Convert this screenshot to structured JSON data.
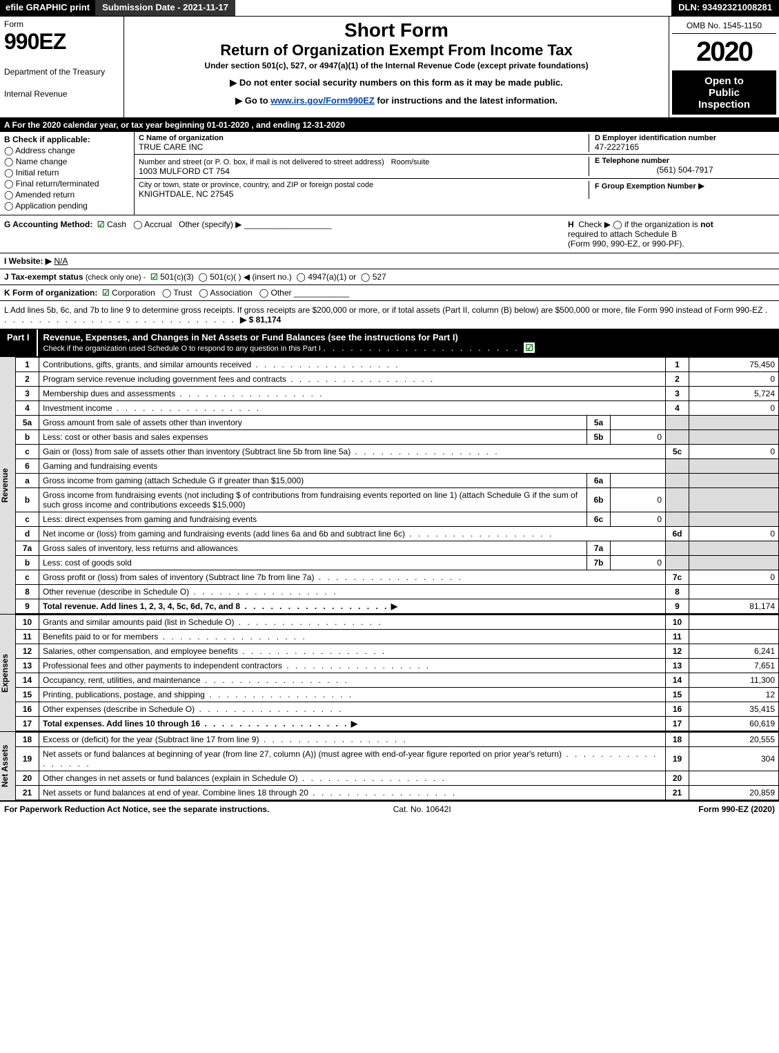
{
  "topbar": {
    "efile": "efile GRAPHIC print",
    "submission": "Submission Date - 2021-11-17",
    "dln": "DLN: 93492321008281"
  },
  "header": {
    "form_label": "Form",
    "form_num": "990EZ",
    "dept1": "Department of the Treasury",
    "dept2": "Internal Revenue",
    "short_form": "Short Form",
    "title": "Return of Organization Exempt From Income Tax",
    "under": "Under section 501(c), 527, or 4947(a)(1) of the Internal Revenue Code (except private foundations)",
    "instr1": "▶ Do not enter social security numbers on this form as it may be made public.",
    "instr2_pre": "▶ Go to ",
    "instr2_link": "www.irs.gov/Form990EZ",
    "instr2_post": " for instructions and the latest information.",
    "omb": "OMB No. 1545-1150",
    "year": "2020",
    "inspect1": "Open to",
    "inspect2": "Public",
    "inspect3": "Inspection"
  },
  "calendar": "A For the 2020 calendar year, or tax year beginning 01-01-2020 , and ending 12-31-2020",
  "sectionB": {
    "title": "B Check if applicable:",
    "opts": [
      "Address change",
      "Name change",
      "Initial return",
      "Final return/terminated",
      "Amended return",
      "Application pending"
    ]
  },
  "sectionC": {
    "c_label": "C Name of organization",
    "org_name": "TRUE CARE INC",
    "addr_label": "Number and street (or P. O. box, if mail is not delivered to street address)",
    "room_label": "Room/suite",
    "addr": "1003 MULFORD CT 754",
    "city_label": "City or town, state or province, country, and ZIP or foreign postal code",
    "city": "KNIGHTDALE, NC  27545"
  },
  "sectionD": {
    "d_label": "D Employer identification number",
    "ein": "47-2227165",
    "e_label": "E Telephone number",
    "phone": "(561) 504-7917",
    "f_label": "F Group Exemption Number",
    "f_arrow": "▶"
  },
  "lineG": {
    "label": "G Accounting Method:",
    "cash": "Cash",
    "accrual": "Accrual",
    "other": "Other (specify) ▶",
    "h_label": "H",
    "h_text1": "Check ▶   ◯  if the organization is",
    "h_not": "not",
    "h_text2": "required to attach Schedule B",
    "h_text3": "(Form 990, 990-EZ, or 990-PF)."
  },
  "lineI": {
    "label": "I Website: ▶",
    "value": "N/A"
  },
  "lineJ": {
    "label": "J Tax-exempt status",
    "sub": "(check only one) -",
    "opt1": "501(c)(3)",
    "opt2": "501(c)(  )",
    "opt2_sub": "◀ (insert no.)",
    "opt3": "4947(a)(1) or",
    "opt4": "527"
  },
  "lineK": {
    "label": "K Form of organization:",
    "opts": [
      "Corporation",
      "Trust",
      "Association",
      "Other"
    ]
  },
  "lineL": {
    "text1": "L Add lines 5b, 6c, and 7b to line 9 to determine gross receipts. If gross receipts are $200,000 or more, or if total assets (Part II, column (B) below) are $500,000 or more, file Form 990 instead of Form 990-EZ",
    "amount": "▶ $ 81,174"
  },
  "part1": {
    "part_no": "Part I",
    "title": "Revenue, Expenses, and Changes in Net Assets or Fund Balances (see the instructions for Part I)",
    "sub": "Check if the organization used Schedule O to respond to any question in this Part I",
    "side_rev": "Revenue",
    "side_exp": "Expenses",
    "side_net": "Net Assets"
  },
  "revenue": [
    {
      "n": "1",
      "desc": "Contributions, gifts, grants, and similar amounts received",
      "lbl": "1",
      "amt": "75,450"
    },
    {
      "n": "2",
      "desc": "Program service revenue including government fees and contracts",
      "lbl": "2",
      "amt": "0"
    },
    {
      "n": "3",
      "desc": "Membership dues and assessments",
      "lbl": "3",
      "amt": "5,724"
    },
    {
      "n": "4",
      "desc": "Investment income",
      "lbl": "4",
      "amt": "0"
    },
    {
      "n": "5a",
      "desc": "Gross amount from sale of assets other than inventory",
      "mid_lbl": "5a",
      "mid_amt": ""
    },
    {
      "n": "b",
      "desc": "Less: cost or other basis and sales expenses",
      "mid_lbl": "5b",
      "mid_amt": "0"
    },
    {
      "n": "c",
      "desc": "Gain or (loss) from sale of assets other than inventory (Subtract line 5b from line 5a)",
      "lbl": "5c",
      "amt": "0"
    },
    {
      "n": "6",
      "desc": "Gaming and fundraising events",
      "plain": true
    },
    {
      "n": "a",
      "desc": "Gross income from gaming (attach Schedule G if greater than $15,000)",
      "mid_lbl": "6a",
      "mid_amt": ""
    },
    {
      "n": "b",
      "desc": "Gross income from fundraising events (not including $                    of contributions from fundraising events reported on line 1) (attach Schedule G if the sum of such gross income and contributions exceeds $15,000)",
      "mid_lbl": "6b",
      "mid_amt": "0"
    },
    {
      "n": "c",
      "desc": "Less: direct expenses from gaming and fundraising events",
      "mid_lbl": "6c",
      "mid_amt": "0"
    },
    {
      "n": "d",
      "desc": "Net income or (loss) from gaming and fundraising events (add lines 6a and 6b and subtract line 6c)",
      "lbl": "6d",
      "amt": "0"
    },
    {
      "n": "7a",
      "desc": "Gross sales of inventory, less returns and allowances",
      "mid_lbl": "7a",
      "mid_amt": ""
    },
    {
      "n": "b",
      "desc": "Less: cost of goods sold",
      "mid_lbl": "7b",
      "mid_amt": "0"
    },
    {
      "n": "c",
      "desc": "Gross profit or (loss) from sales of inventory (Subtract line 7b from line 7a)",
      "lbl": "7c",
      "amt": "0"
    },
    {
      "n": "8",
      "desc": "Other revenue (describe in Schedule O)",
      "lbl": "8",
      "amt": ""
    },
    {
      "n": "9",
      "desc": "Total revenue. Add lines 1, 2, 3, 4, 5c, 6d, 7c, and 8",
      "lbl": "9",
      "amt": "81,174",
      "bold": true,
      "arrow": true
    }
  ],
  "expenses": [
    {
      "n": "10",
      "desc": "Grants and similar amounts paid (list in Schedule O)",
      "lbl": "10",
      "amt": ""
    },
    {
      "n": "11",
      "desc": "Benefits paid to or for members",
      "lbl": "11",
      "amt": ""
    },
    {
      "n": "12",
      "desc": "Salaries, other compensation, and employee benefits",
      "lbl": "12",
      "amt": "6,241"
    },
    {
      "n": "13",
      "desc": "Professional fees and other payments to independent contractors",
      "lbl": "13",
      "amt": "7,651"
    },
    {
      "n": "14",
      "desc": "Occupancy, rent, utilities, and maintenance",
      "lbl": "14",
      "amt": "11,300"
    },
    {
      "n": "15",
      "desc": "Printing, publications, postage, and shipping",
      "lbl": "15",
      "amt": "12"
    },
    {
      "n": "16",
      "desc": "Other expenses (describe in Schedule O)",
      "lbl": "16",
      "amt": "35,415"
    },
    {
      "n": "17",
      "desc": "Total expenses. Add lines 10 through 16",
      "lbl": "17",
      "amt": "60,619",
      "bold": true,
      "arrow": true
    }
  ],
  "netassets": [
    {
      "n": "18",
      "desc": "Excess or (deficit) for the year (Subtract line 17 from line 9)",
      "lbl": "18",
      "amt": "20,555"
    },
    {
      "n": "19",
      "desc": "Net assets or fund balances at beginning of year (from line 27, column (A)) (must agree with end-of-year figure reported on prior year's return)",
      "lbl": "19",
      "amt": "304"
    },
    {
      "n": "20",
      "desc": "Other changes in net assets or fund balances (explain in Schedule O)",
      "lbl": "20",
      "amt": ""
    },
    {
      "n": "21",
      "desc": "Net assets or fund balances at end of year. Combine lines 18 through 20",
      "lbl": "21",
      "amt": "20,859"
    }
  ],
  "footer": {
    "left": "For Paperwork Reduction Act Notice, see the separate instructions.",
    "mid": "Cat. No. 10642I",
    "right_pre": "Form ",
    "right_bold": "990-EZ",
    "right_post": " (2020)"
  }
}
